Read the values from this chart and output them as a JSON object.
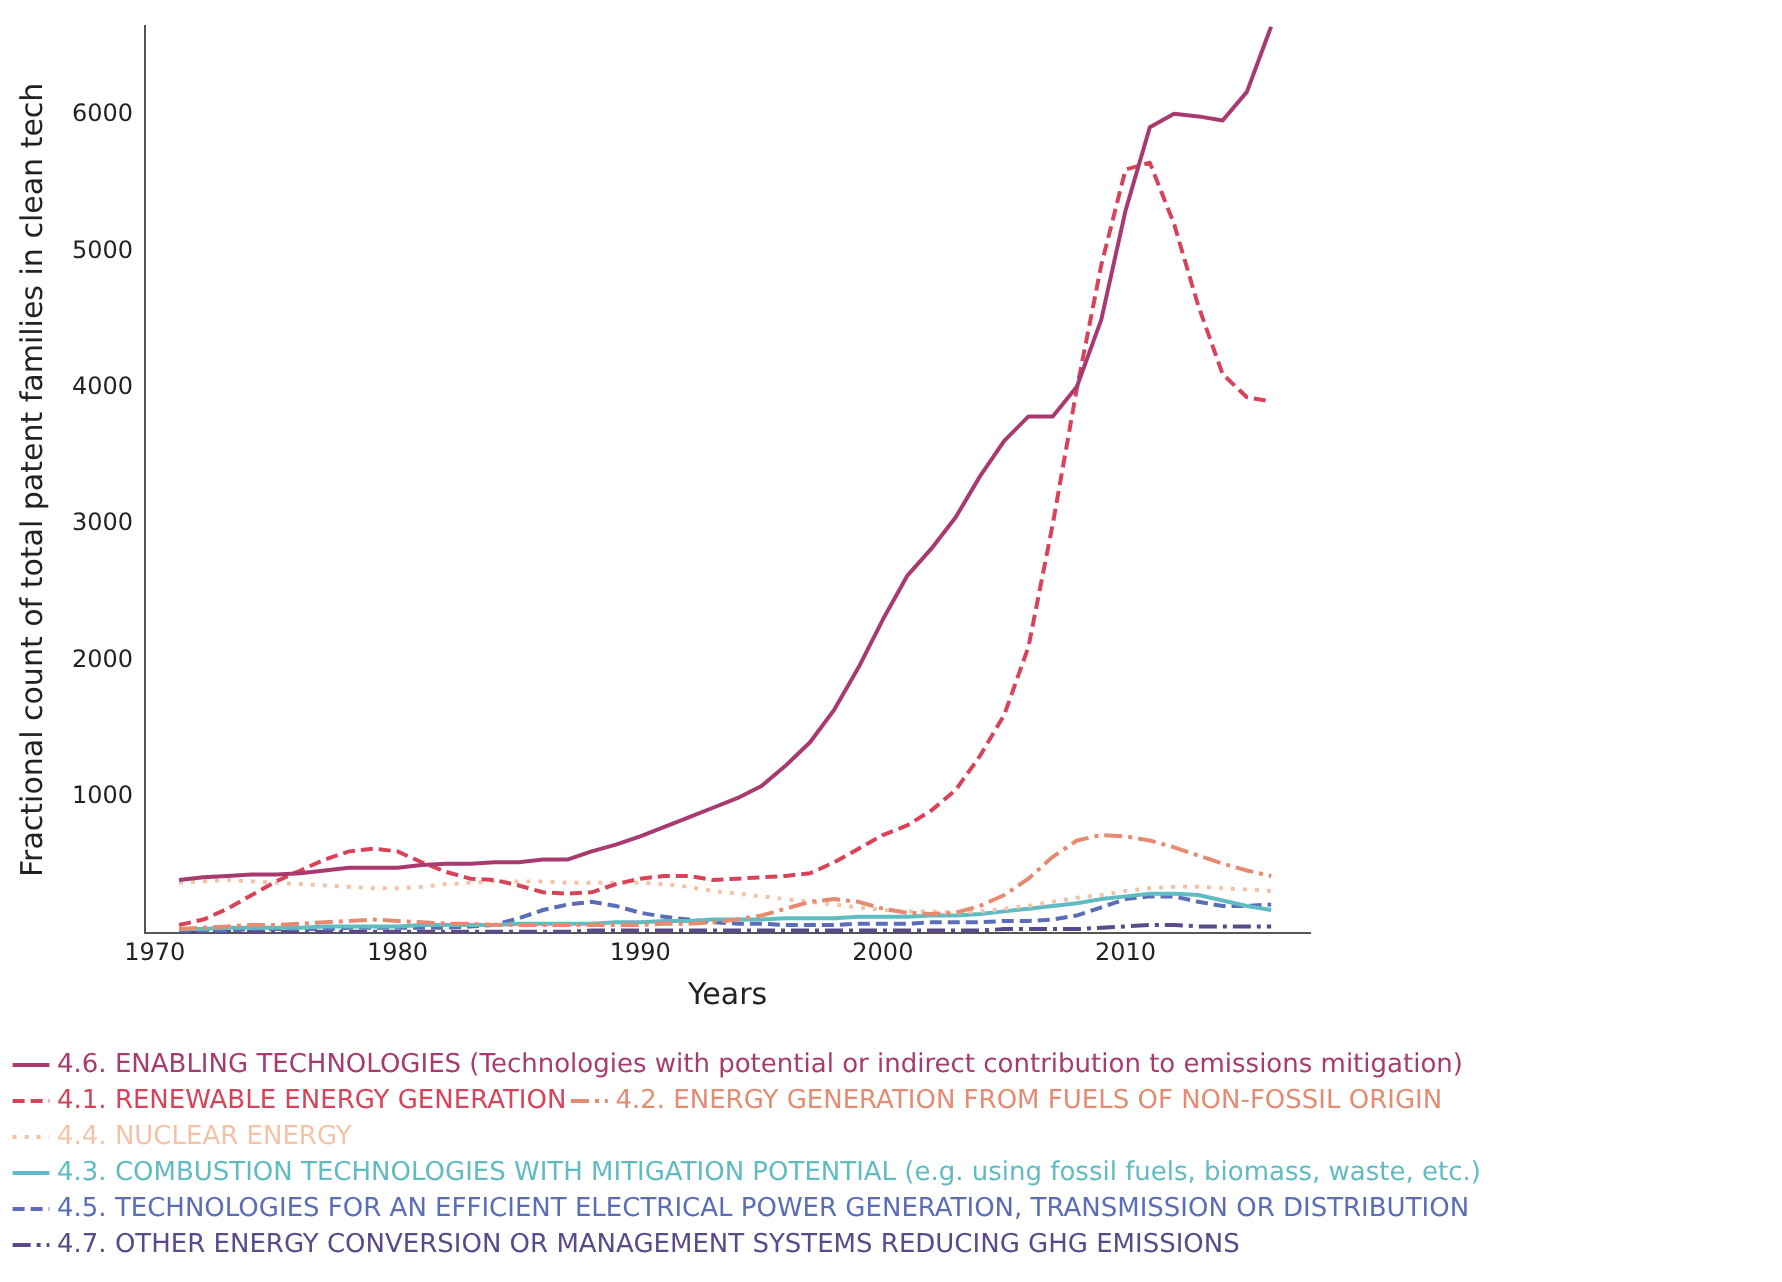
{
  "chart_data": {
    "type": "line",
    "xlabel": "Years",
    "ylabel": "Fractional count of total patent families in clean tech",
    "x": [
      1971,
      1972,
      1973,
      1974,
      1975,
      1976,
      1977,
      1978,
      1979,
      1980,
      1981,
      1982,
      1983,
      1984,
      1985,
      1986,
      1987,
      1988,
      1989,
      1990,
      1991,
      1992,
      1993,
      1994,
      1995,
      1996,
      1997,
      1998,
      1999,
      2000,
      2001,
      2002,
      2003,
      2004,
      2005,
      2006,
      2007,
      2008,
      2009,
      2010,
      2011,
      2012,
      2013,
      2014,
      2015,
      2016
    ],
    "xlim": [
      1969.6,
      2017.6
    ],
    "xticks": [
      1970,
      1980,
      1990,
      2000,
      2010
    ],
    "ylim": [
      0,
      6650
    ],
    "yticks": [
      1000,
      2000,
      3000,
      4000,
      5000,
      6000
    ],
    "grid": false,
    "legend": "bottom",
    "marker": "none",
    "series": [
      {
        "name": "4.6. ENABLING TECHNOLOGIES (Technologies with potential or indirect contribution to emissions mitigation)",
        "color": "#a83a6f",
        "line_style": "solid",
        "values": [
          390,
          410,
          420,
          430,
          430,
          440,
          460,
          480,
          480,
          480,
          500,
          510,
          510,
          520,
          520,
          540,
          540,
          600,
          650,
          710,
          780,
          850,
          920,
          990,
          1080,
          1230,
          1400,
          1640,
          1950,
          2300,
          2620,
          2820,
          3050,
          3350,
          3610,
          3790,
          3790,
          4010,
          4500,
          5300,
          5910,
          6010,
          5990,
          5960,
          6170,
          6650
        ]
      },
      {
        "name": "4.1. RENEWABLE ENERGY GENERATION",
        "color": "#d9435a",
        "line_style": "dashed",
        "values": [
          60,
          100,
          180,
          280,
          380,
          460,
          540,
          600,
          620,
          600,
          520,
          450,
          400,
          390,
          350,
          300,
          290,
          300,
          360,
          400,
          420,
          420,
          390,
          400,
          410,
          420,
          440,
          520,
          620,
          720,
          790,
          900,
          1050,
          1300,
          1600,
          2100,
          3000,
          4000,
          4900,
          5600,
          5650,
          5200,
          4600,
          4100,
          3930,
          3900
        ]
      },
      {
        "name": "4.2. ENERGY GENERATION FROM FUELS OF NON-FOSSIL ORIGIN",
        "color": "#e58b72",
        "line_style": "dashdot",
        "values": [
          30,
          40,
          50,
          60,
          60,
          70,
          80,
          90,
          100,
          90,
          80,
          70,
          70,
          60,
          60,
          60,
          60,
          60,
          60,
          60,
          70,
          70,
          80,
          100,
          130,
          180,
          230,
          250,
          230,
          180,
          150,
          140,
          150,
          200,
          280,
          400,
          560,
          680,
          720,
          710,
          680,
          630,
          570,
          510,
          460,
          420
        ]
      },
      {
        "name": "4.4. NUCLEAR ENERGY",
        "color": "#f3c3a8",
        "line_style": "dotted",
        "values": [
          370,
          380,
          390,
          380,
          370,
          360,
          350,
          340,
          330,
          330,
          340,
          360,
          370,
          380,
          380,
          380,
          370,
          370,
          370,
          370,
          360,
          340,
          310,
          290,
          270,
          250,
          230,
          210,
          190,
          170,
          160,
          160,
          150,
          160,
          180,
          200,
          230,
          260,
          280,
          310,
          330,
          340,
          340,
          330,
          320,
          310
        ]
      },
      {
        "name": "4.3. COMBUSTION TECHNOLOGIES WITH MITIGATION POTENTIAL (e.g. using fossil fuels, biomass, waste, etc.)",
        "color": "#5ebcc2",
        "line_style": "solid",
        "values": [
          30,
          30,
          40,
          40,
          40,
          40,
          50,
          50,
          50,
          50,
          60,
          60,
          60,
          60,
          70,
          70,
          70,
          70,
          80,
          80,
          90,
          90,
          100,
          100,
          100,
          110,
          110,
          110,
          120,
          120,
          120,
          130,
          130,
          140,
          160,
          180,
          200,
          220,
          250,
          270,
          290,
          290,
          280,
          240,
          200,
          170
        ]
      },
      {
        "name": "4.5. TECHNOLOGIES FOR AN EFFICIENT ELECTRICAL POWER GENERATION, TRANSMISSION OR DISTRIBUTION",
        "color": "#5b6db8",
        "line_style": "dashed",
        "values": [
          20,
          20,
          20,
          30,
          30,
          30,
          30,
          40,
          40,
          40,
          40,
          40,
          50,
          60,
          110,
          170,
          210,
          230,
          200,
          150,
          120,
          100,
          80,
          70,
          70,
          60,
          60,
          60,
          70,
          70,
          70,
          80,
          80,
          80,
          90,
          90,
          100,
          130,
          190,
          250,
          270,
          270,
          230,
          200,
          200,
          210
        ]
      },
      {
        "name": "4.7. OTHER ENERGY CONVERSION OR MANAGEMENT SYSTEMS REDUCING GHG EMISSIONS",
        "color": "#5a4a8a",
        "line_style": "dashdot",
        "values": [
          10,
          10,
          10,
          10,
          10,
          10,
          10,
          10,
          10,
          10,
          10,
          10,
          10,
          10,
          10,
          10,
          10,
          20,
          20,
          20,
          20,
          20,
          20,
          20,
          20,
          20,
          20,
          20,
          20,
          20,
          20,
          20,
          20,
          20,
          30,
          30,
          30,
          30,
          40,
          50,
          60,
          60,
          50,
          50,
          50,
          50
        ]
      }
    ]
  }
}
